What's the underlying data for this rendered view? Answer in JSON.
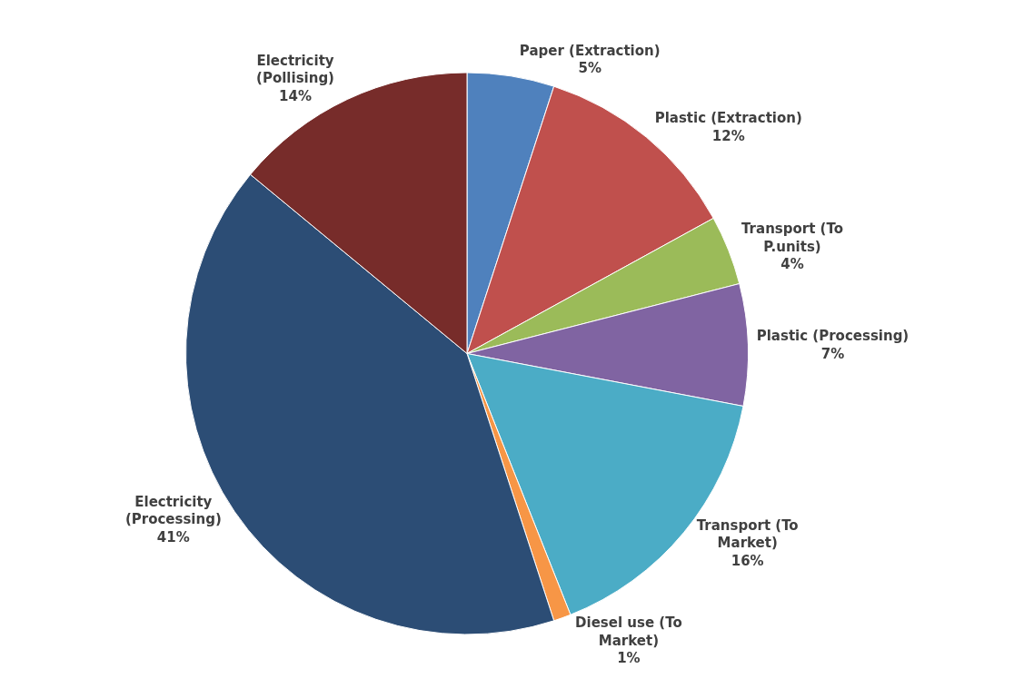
{
  "chart_data": {
    "type": "pie",
    "categories": [
      "Paper (Extraction)",
      "Plastic (Extraction)",
      "Transport (To P.units)",
      "Plastic (Processing)",
      "Transport (To Market)",
      "Diesel use (To Market)",
      "Electricity (Processing)",
      "Electricity (Pollising)"
    ],
    "values": [
      5,
      12,
      4,
      7,
      16,
      1,
      41,
      14
    ],
    "value_labels": [
      "5%",
      "12%",
      "4%",
      "7%",
      "16%",
      "1%",
      "41%",
      "14%"
    ],
    "colors": [
      "#4f81bd",
      "#c0504d",
      "#9bbb59",
      "#8064a2",
      "#4bacc6",
      "#f79646",
      "#2c4d75",
      "#772c2a"
    ],
    "legend": false
  }
}
